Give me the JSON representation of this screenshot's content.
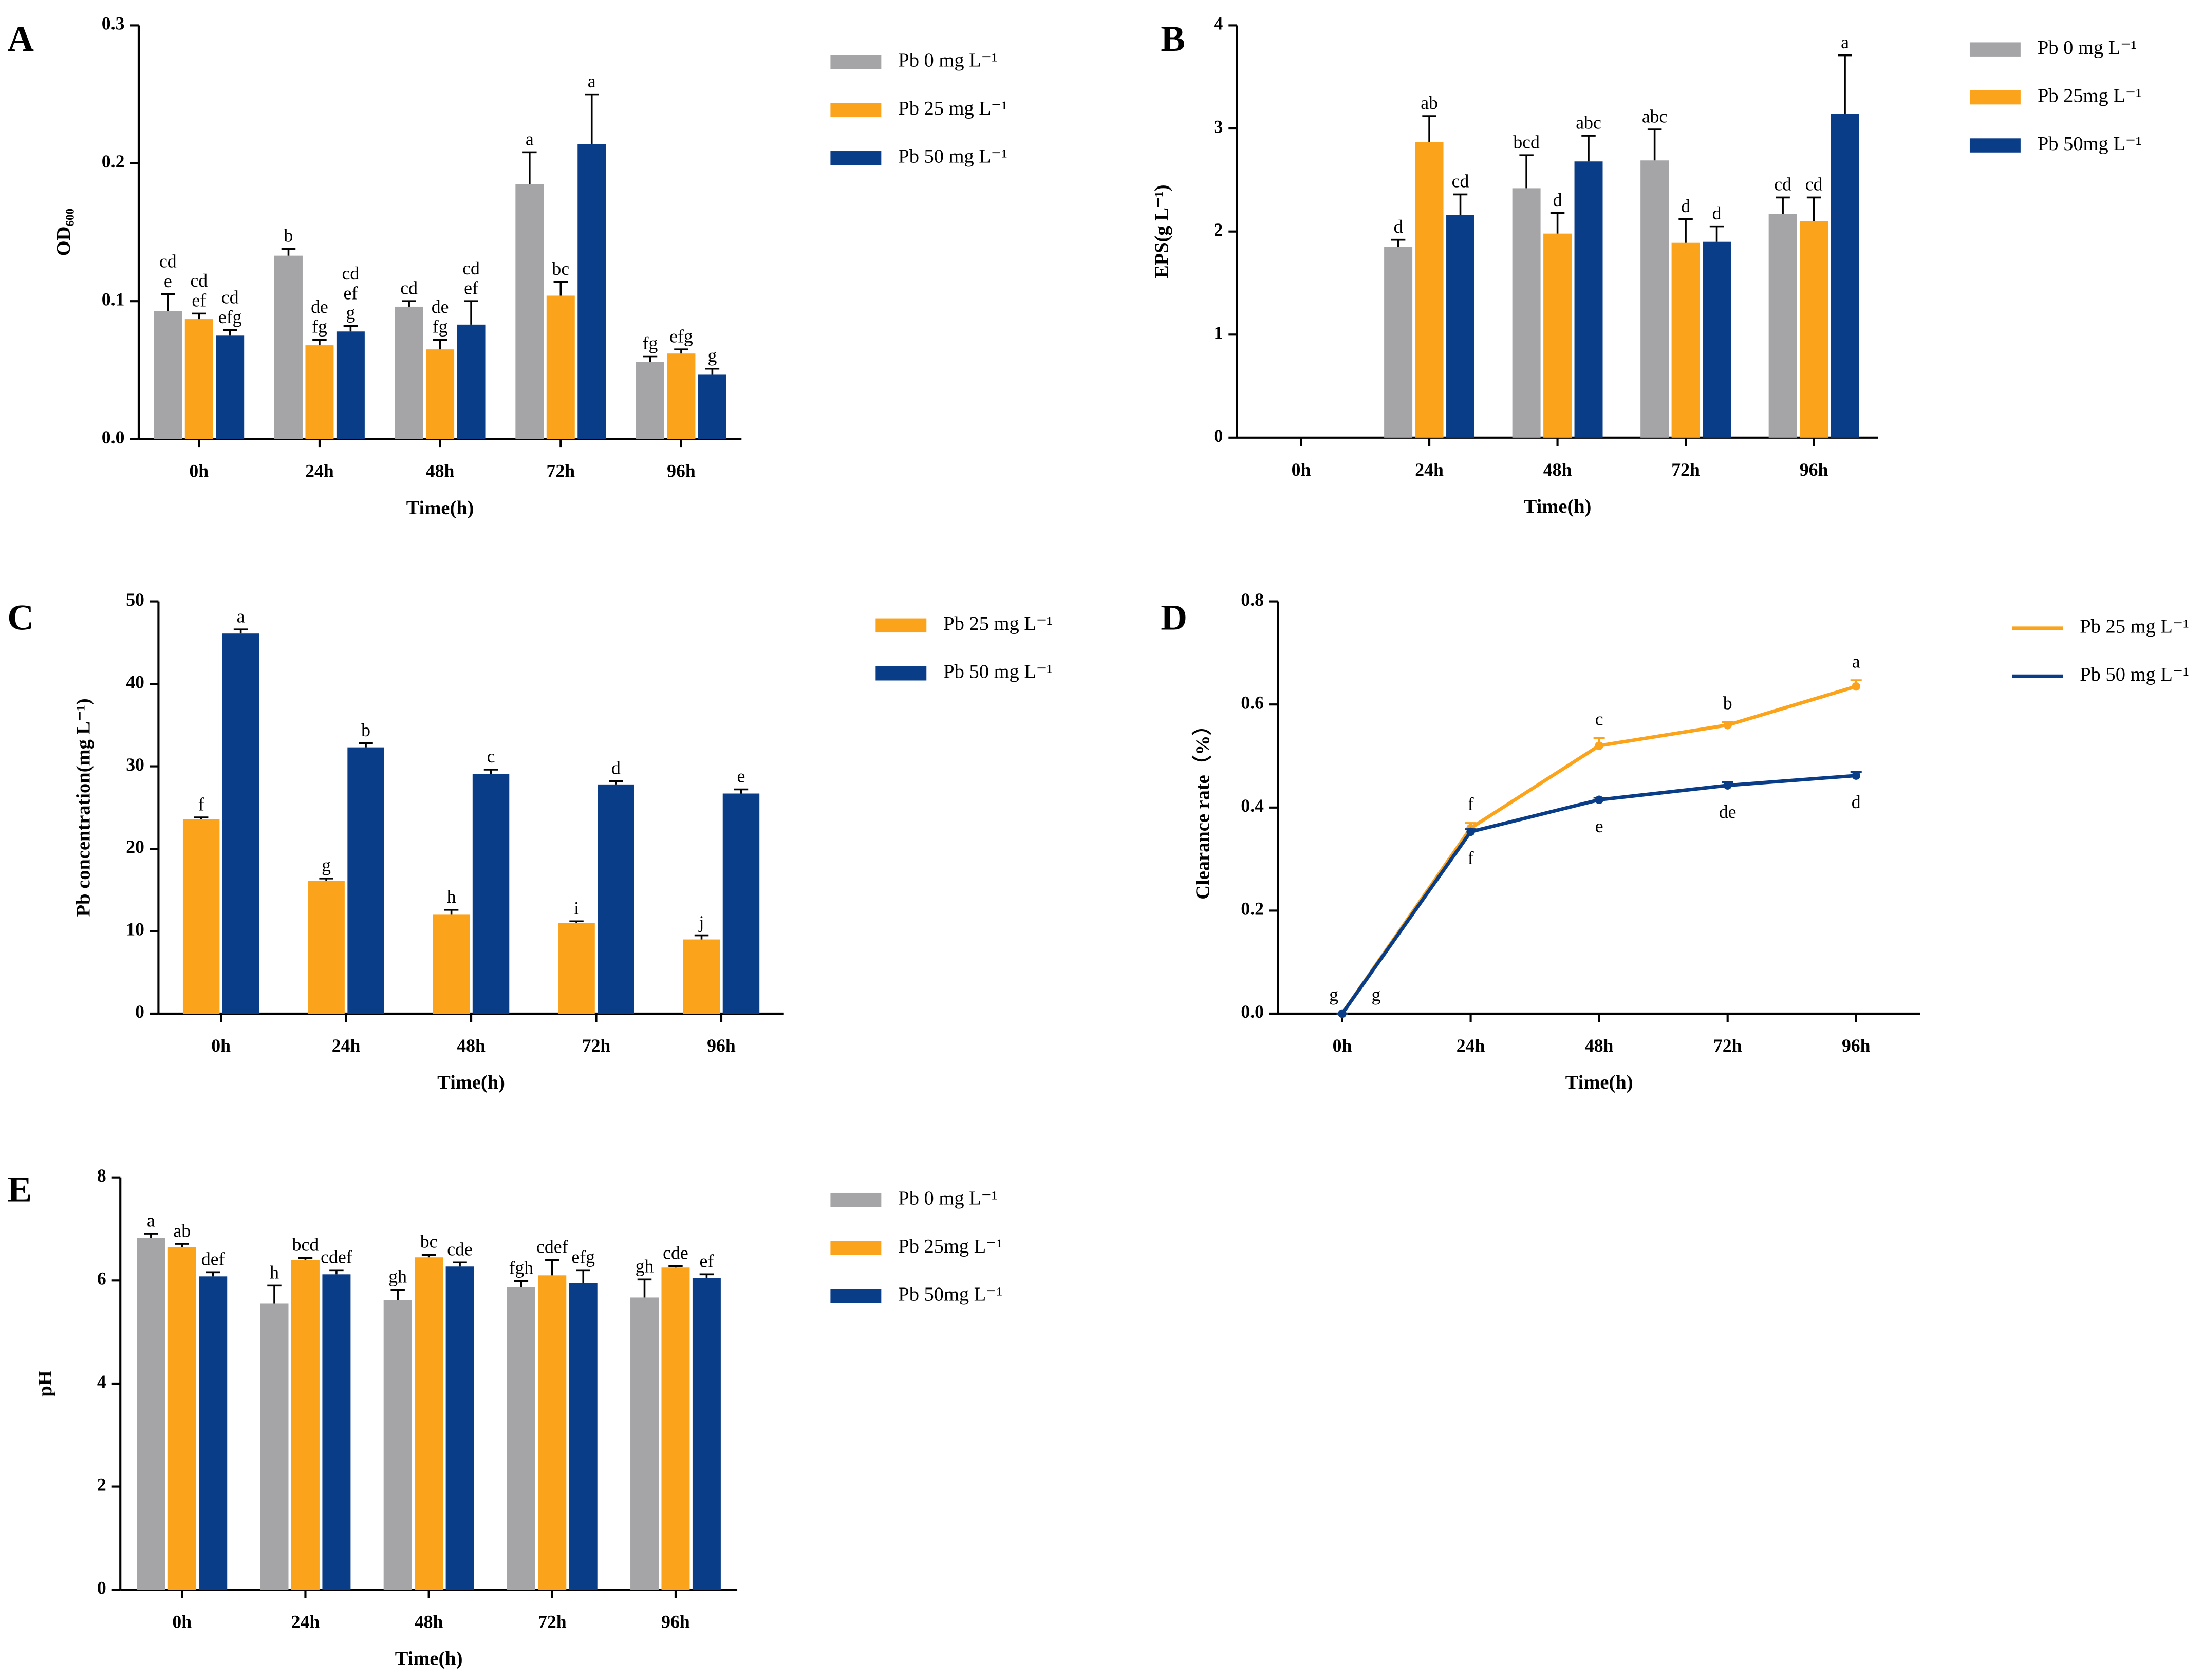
{
  "chart_data": [
    {
      "type": "bar",
      "label": "A",
      "ylabel": "OD₆₀₀",
      "xlabel": "Time(h)",
      "categories": [
        "0h",
        "24h",
        "48h",
        "72h",
        "96h"
      ],
      "ylim": [
        0,
        0.3
      ],
      "yticks": [
        {
          "value": 0,
          "label": "0.0"
        },
        0.1,
        0.2,
        0.3
      ],
      "series": [
        {
          "name": "Pb  0 mg L⁻¹",
          "color": "#a5a5a8",
          "values": [
            0.093,
            0.133,
            0.096,
            0.185,
            0.056
          ],
          "errors": [
            0.012,
            0.005,
            0.004,
            0.023,
            0.004
          ],
          "letters": [
            [
              "cd",
              "e"
            ],
            [
              "b"
            ],
            [
              "cd"
            ],
            [
              "a"
            ],
            [
              "fg"
            ]
          ]
        },
        {
          "name": "Pb  25 mg L⁻¹",
          "color": "#fba31a",
          "values": [
            0.087,
            0.068,
            0.065,
            0.104,
            0.062
          ],
          "errors": [
            0.004,
            0.004,
            0.007,
            0.01,
            0.003
          ],
          "letters": [
            [
              "cd",
              "ef"
            ],
            [
              "de",
              "fg"
            ],
            [
              "de",
              "fg"
            ],
            [
              "bc"
            ],
            [
              "efg"
            ]
          ]
        },
        {
          "name": "Pb 50 mg L⁻¹",
          "color": "#0a3d87",
          "values": [
            0.075,
            0.078,
            0.083,
            0.214,
            0.047
          ],
          "errors": [
            0.004,
            0.004,
            0.017,
            0.036,
            0.004
          ],
          "letters": [
            [
              "cd",
              "efg"
            ],
            [
              "cd",
              "ef",
              "g"
            ],
            [
              "cd",
              "ef"
            ],
            [
              "a"
            ],
            [
              "g"
            ]
          ]
        }
      ]
    },
    {
      "type": "bar",
      "label": "B",
      "ylabel": "EPS(g L⁻¹)",
      "xlabel": "Time(h)",
      "categories": [
        "0h",
        "24h",
        "48h",
        "72h",
        "96h"
      ],
      "ylim": [
        0,
        4
      ],
      "yticks": [
        0,
        1,
        2,
        3,
        4
      ],
      "series": [
        {
          "name": "Pb 0 mg L⁻¹",
          "color": "#a5a5a8",
          "values": [
            null,
            1.85,
            2.42,
            2.69,
            2.17
          ],
          "errors": [
            null,
            0.07,
            0.32,
            0.3,
            0.16
          ],
          "letters": [
            null,
            [
              "d"
            ],
            [
              "bcd"
            ],
            [
              "abc"
            ],
            [
              "cd"
            ]
          ]
        },
        {
          "name": "Pb 25mg L⁻¹",
          "color": "#fba31a",
          "values": [
            null,
            2.87,
            1.98,
            1.89,
            2.1
          ],
          "errors": [
            null,
            0.25,
            0.2,
            0.23,
            0.23
          ],
          "letters": [
            null,
            [
              "ab"
            ],
            [
              "d"
            ],
            [
              "d"
            ],
            [
              "cd"
            ]
          ]
        },
        {
          "name": "Pb 50mg L⁻¹",
          "color": "#0a3d87",
          "values": [
            null,
            2.16,
            2.68,
            1.9,
            3.14
          ],
          "errors": [
            null,
            0.2,
            0.25,
            0.15,
            0.57
          ],
          "letters": [
            null,
            [
              "cd"
            ],
            [
              "abc"
            ],
            [
              "d"
            ],
            [
              "a"
            ]
          ]
        }
      ]
    },
    {
      "type": "bar",
      "label": "C",
      "ylabel": "Pb concentration(mg L⁻¹)",
      "xlabel": "Time(h)",
      "categories": [
        "0h",
        "24h",
        "48h",
        "72h",
        "96h"
      ],
      "ylim": [
        0,
        50
      ],
      "yticks": [
        0,
        10,
        20,
        30,
        40,
        50
      ],
      "series": [
        {
          "name": "Pb 25 mg L⁻¹",
          "color": "#fba31a",
          "values": [
            23.6,
            16.1,
            12.0,
            11.0,
            9.0
          ],
          "errors": [
            0.2,
            0.3,
            0.6,
            0.2,
            0.5
          ],
          "letters": [
            [
              "f"
            ],
            [
              "g"
            ],
            [
              "h"
            ],
            [
              "i"
            ],
            [
              "j"
            ]
          ]
        },
        {
          "name": "Pb 50 mg L⁻¹",
          "color": "#0a3d87",
          "values": [
            46.1,
            32.3,
            29.1,
            27.8,
            26.7
          ],
          "errors": [
            0.5,
            0.5,
            0.5,
            0.4,
            0.5
          ],
          "letters": [
            [
              "a"
            ],
            [
              "b"
            ],
            [
              "c"
            ],
            [
              "d"
            ],
            [
              "e"
            ]
          ]
        }
      ]
    },
    {
      "type": "line",
      "label": "D",
      "ylabel": "Clearance rate（%）",
      "xlabel": "Time(h)",
      "categories": [
        "0h",
        "24h",
        "48h",
        "72h",
        "96h"
      ],
      "ylim": [
        0,
        0.8
      ],
      "yticks": [
        {
          "value": 0,
          "label": "0.0"
        },
        0.2,
        0.4,
        0.6,
        0.8
      ],
      "series": [
        {
          "name": "Pb  25 mg L⁻¹",
          "color": "#fba31a",
          "values": [
            0,
            0.36,
            0.52,
            0.56,
            0.635
          ],
          "errors": [
            0,
            0.01,
            0.015,
            0.006,
            0.012
          ],
          "letters": [
            [
              "g"
            ],
            [
              "f"
            ],
            [
              "c"
            ],
            [
              "b"
            ],
            [
              "a"
            ]
          ]
        },
        {
          "name": "Pb  50 mg L⁻¹",
          "color": "#0a3d87",
          "values": [
            0,
            0.353,
            0.415,
            0.443,
            0.462
          ],
          "errors": [
            0,
            0.005,
            0.004,
            0.006,
            0.007
          ],
          "letters": [
            [
              "g"
            ],
            [
              "f"
            ],
            [
              "e"
            ],
            [
              "de"
            ],
            [
              "d"
            ]
          ]
        }
      ]
    },
    {
      "type": "bar",
      "label": "E",
      "ylabel": "pH",
      "xlabel": "Time(h)",
      "categories": [
        "0h",
        "24h",
        "48h",
        "72h",
        "96h"
      ],
      "ylim": [
        0,
        8
      ],
      "yticks": [
        0,
        2,
        4,
        6,
        8
      ],
      "series": [
        {
          "name": "Pb  0 mg L⁻¹",
          "color": "#a5a5a8",
          "values": [
            6.83,
            5.55,
            5.62,
            5.87,
            5.67
          ],
          "errors": [
            0.08,
            0.35,
            0.2,
            0.12,
            0.35
          ],
          "letters": [
            [
              "a"
            ],
            [
              "h"
            ],
            [
              "gh"
            ],
            [
              "fgh"
            ],
            [
              "gh"
            ]
          ]
        },
        {
          "name": "Pb 25mg L⁻¹",
          "color": "#fba31a",
          "values": [
            6.65,
            6.4,
            6.45,
            6.1,
            6.25
          ],
          "errors": [
            0.06,
            0.04,
            0.05,
            0.3,
            0.03
          ],
          "letters": [
            [
              "ab"
            ],
            [
              "bcd"
            ],
            [
              "bc"
            ],
            [
              "cdef"
            ],
            [
              "cde"
            ]
          ]
        },
        {
          "name": "Pb 50mg L⁻¹",
          "color": "#0a3d87",
          "values": [
            6.08,
            6.12,
            6.27,
            5.95,
            6.05
          ],
          "errors": [
            0.08,
            0.08,
            0.08,
            0.25,
            0.07
          ],
          "letters": [
            [
              "def"
            ],
            [
              "cdef"
            ],
            [
              "cde"
            ],
            [
              "efg"
            ],
            [
              "ef"
            ]
          ]
        }
      ]
    }
  ]
}
